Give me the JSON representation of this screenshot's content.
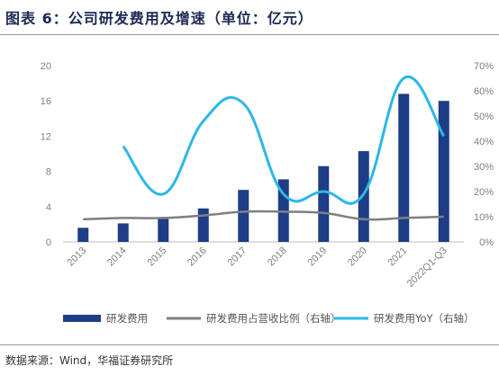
{
  "header": {
    "title": "图表 6：公司研发费用及增速（单位：亿元）"
  },
  "footer": {
    "source": "数据来源：Wind，华福证券研究所"
  },
  "colors": {
    "bar": "#1d3d86",
    "ratio_line": "#7f7f7f",
    "yoy_line": "#2cb7e8",
    "axis": "#bfbfbf"
  },
  "chart_data": {
    "type": "bar",
    "categories": [
      "2013",
      "2014",
      "2015",
      "2016",
      "2017",
      "2018",
      "2019",
      "2020",
      "2021",
      "2022Q1-Q3"
    ],
    "series": [
      {
        "name": "研发费用",
        "type": "bar",
        "axis": "left",
        "values": [
          1.6,
          2.1,
          2.6,
          3.8,
          5.9,
          7.1,
          8.6,
          10.3,
          16.8,
          16.0
        ]
      },
      {
        "name": "研发费用占营收比例（右轴）",
        "type": "line",
        "axis": "right",
        "values": [
          0.09,
          0.095,
          0.095,
          0.105,
          0.12,
          0.12,
          0.115,
          0.09,
          0.095,
          0.1
        ]
      },
      {
        "name": "研发费用YoY（右轴）",
        "type": "line",
        "axis": "right",
        "values": [
          null,
          0.38,
          0.19,
          0.48,
          0.55,
          0.19,
          0.2,
          0.19,
          0.65,
          0.42
        ]
      }
    ],
    "left_axis": {
      "ylim": [
        0,
        20
      ],
      "ticks": [
        "0",
        "4",
        "8",
        "12",
        "16",
        "20"
      ]
    },
    "right_axis": {
      "ylim": [
        0,
        0.7
      ],
      "ticks": [
        "0%",
        "10%",
        "20%",
        "30%",
        "40%",
        "50%",
        "60%",
        "70%"
      ]
    },
    "grid": false,
    "legend_position": "bottom"
  }
}
